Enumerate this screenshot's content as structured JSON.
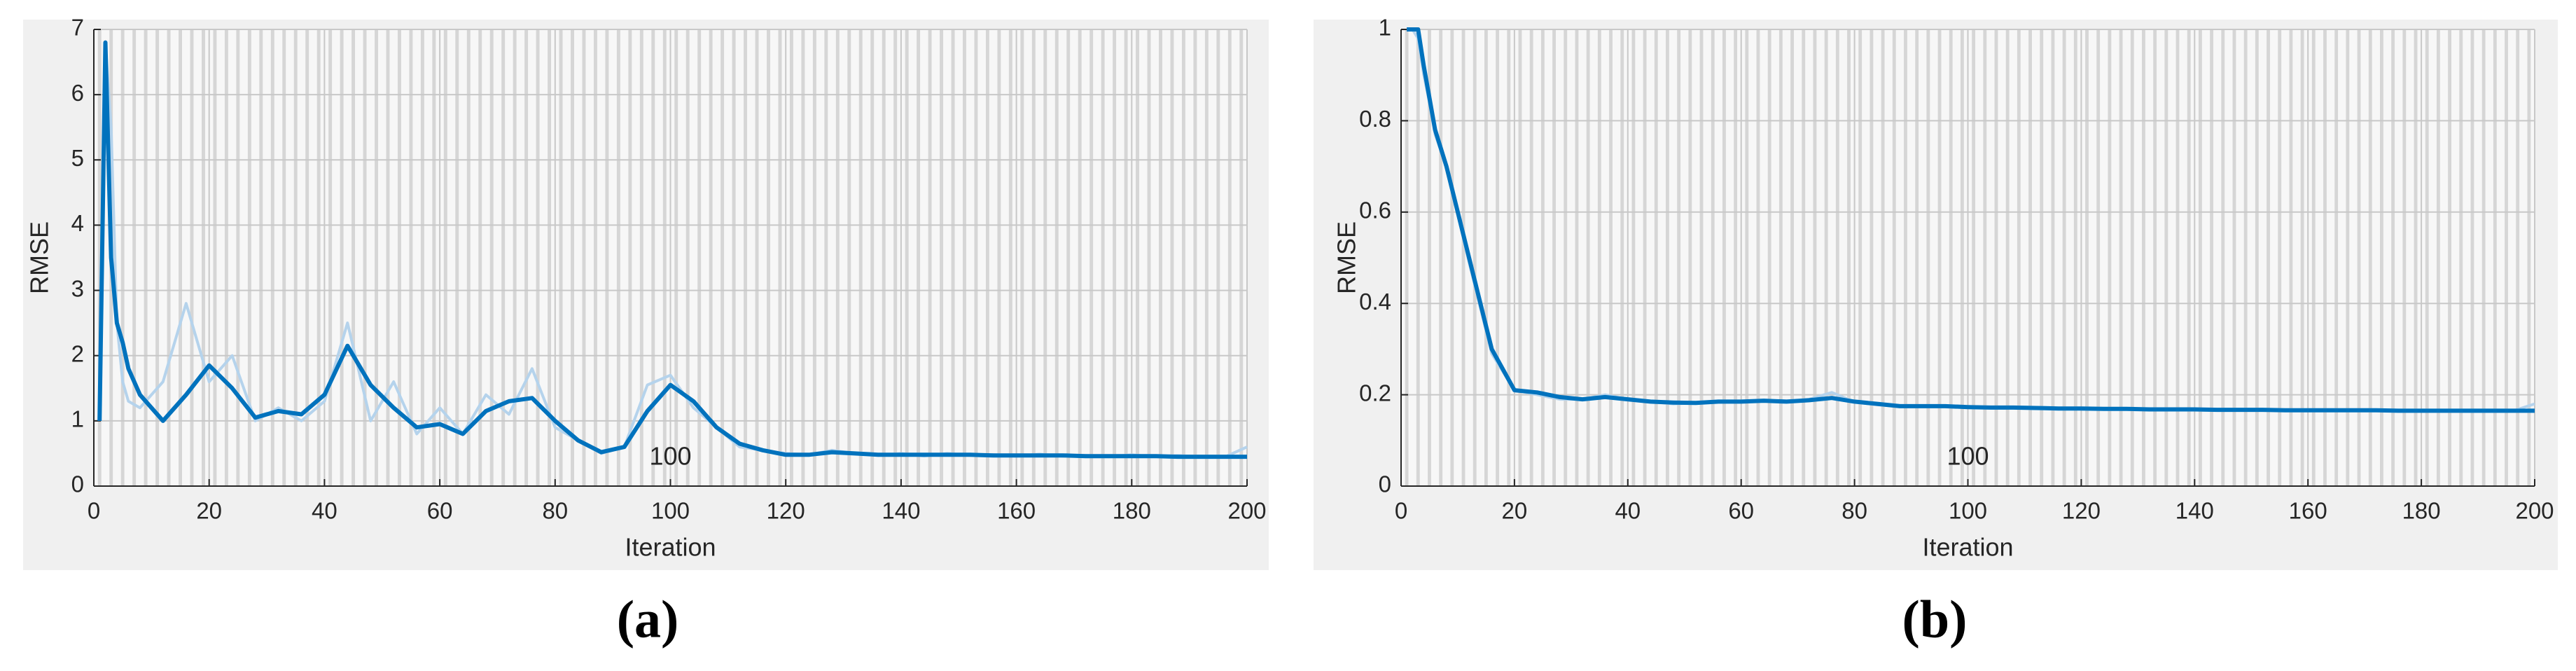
{
  "chart_data": [
    {
      "type": "line",
      "caption": "(a)",
      "xlabel": "Iteration",
      "ylabel": "RMSE",
      "annotation": "100",
      "grid": true,
      "xlim": [
        0,
        200
      ],
      "xticks": [
        0,
        20,
        40,
        60,
        80,
        100,
        120,
        140,
        160,
        180,
        200
      ],
      "ylim": [
        0,
        7
      ],
      "yticks": [
        0,
        1,
        2,
        3,
        4,
        5,
        6,
        7
      ],
      "x": [
        1,
        2,
        3,
        4,
        5,
        6,
        8,
        12,
        16,
        20,
        24,
        28,
        32,
        36,
        40,
        44,
        48,
        52,
        56,
        60,
        64,
        68,
        72,
        76,
        80,
        84,
        88,
        92,
        96,
        100,
        104,
        108,
        112,
        116,
        120,
        124,
        128,
        132,
        136,
        140,
        144,
        148,
        152,
        156,
        160,
        164,
        168,
        172,
        176,
        180,
        184,
        188,
        192,
        196,
        200
      ],
      "series": [
        {
          "color": "#b5d3ec",
          "values": [
            1.0,
            6.8,
            5.5,
            2.5,
            1.6,
            1.3,
            1.2,
            1.6,
            2.8,
            1.6,
            2.0,
            1.0,
            1.2,
            1.0,
            1.3,
            2.5,
            1.0,
            1.6,
            0.8,
            1.2,
            0.8,
            1.4,
            1.1,
            1.8,
            0.9,
            0.7,
            0.5,
            0.6,
            1.55,
            1.7,
            1.2,
            0.9,
            0.6,
            0.55,
            0.5,
            0.48,
            0.55,
            0.5,
            0.47,
            0.5,
            0.46,
            0.5,
            0.47,
            0.48,
            0.46,
            0.49,
            0.46,
            0.47,
            0.45,
            0.48,
            0.45,
            0.47,
            0.45,
            0.44,
            0.6
          ]
        },
        {
          "color": "#0072bd",
          "values": [
            1.0,
            6.8,
            3.5,
            2.5,
            2.2,
            1.8,
            1.4,
            1.0,
            1.4,
            1.85,
            1.5,
            1.05,
            1.15,
            1.1,
            1.4,
            2.15,
            1.55,
            1.2,
            0.9,
            0.95,
            0.8,
            1.15,
            1.3,
            1.35,
            1.0,
            0.7,
            0.52,
            0.6,
            1.15,
            1.55,
            1.3,
            0.9,
            0.65,
            0.55,
            0.48,
            0.48,
            0.52,
            0.5,
            0.48,
            0.48,
            0.48,
            0.48,
            0.48,
            0.47,
            0.47,
            0.47,
            0.47,
            0.46,
            0.46,
            0.46,
            0.46,
            0.45,
            0.45,
            0.45,
            0.45
          ]
        }
      ]
    },
    {
      "type": "line",
      "caption": "(b)",
      "xlabel": "Iteration",
      "ylabel": "RMSE",
      "annotation": "100",
      "grid": true,
      "xlim": [
        0,
        200
      ],
      "xticks": [
        0,
        20,
        40,
        60,
        80,
        100,
        120,
        140,
        160,
        180,
        200
      ],
      "ylim": [
        0,
        1
      ],
      "yticks": [
        0,
        0.2,
        0.4,
        0.6,
        0.8,
        1
      ],
      "x": [
        1,
        2,
        3,
        4,
        5,
        6,
        8,
        12,
        16,
        20,
        24,
        28,
        32,
        36,
        40,
        44,
        48,
        52,
        56,
        60,
        64,
        68,
        72,
        76,
        80,
        84,
        88,
        92,
        96,
        100,
        104,
        108,
        112,
        116,
        120,
        124,
        128,
        132,
        136,
        140,
        144,
        148,
        152,
        156,
        160,
        164,
        168,
        172,
        176,
        180,
        184,
        188,
        192,
        196,
        200
      ],
      "series": [
        {
          "color": "#b5d3ec",
          "values": [
            1.0,
            1.0,
            0.98,
            0.9,
            0.84,
            0.77,
            0.7,
            0.49,
            0.29,
            0.21,
            0.2,
            0.19,
            0.19,
            0.2,
            0.19,
            0.185,
            0.18,
            0.182,
            0.186,
            0.185,
            0.188,
            0.184,
            0.19,
            0.205,
            0.184,
            0.178,
            0.174,
            0.176,
            0.174,
            0.172,
            0.172,
            0.171,
            0.17,
            0.17,
            0.169,
            0.169,
            0.168,
            0.168,
            0.168,
            0.167,
            0.167,
            0.167,
            0.166,
            0.166,
            0.166,
            0.166,
            0.165,
            0.165,
            0.165,
            0.165,
            0.165,
            0.164,
            0.164,
            0.164,
            0.18
          ]
        },
        {
          "color": "#0072bd",
          "values": [
            1.0,
            1.0,
            1.0,
            0.92,
            0.85,
            0.78,
            0.7,
            0.5,
            0.3,
            0.21,
            0.205,
            0.195,
            0.19,
            0.195,
            0.19,
            0.185,
            0.183,
            0.182,
            0.185,
            0.185,
            0.187,
            0.185,
            0.188,
            0.193,
            0.185,
            0.18,
            0.175,
            0.175,
            0.175,
            0.173,
            0.172,
            0.172,
            0.171,
            0.17,
            0.17,
            0.169,
            0.169,
            0.168,
            0.168,
            0.168,
            0.167,
            0.167,
            0.167,
            0.166,
            0.166,
            0.166,
            0.166,
            0.166,
            0.165,
            0.165,
            0.165,
            0.165,
            0.165,
            0.165,
            0.165
          ]
        }
      ]
    }
  ]
}
